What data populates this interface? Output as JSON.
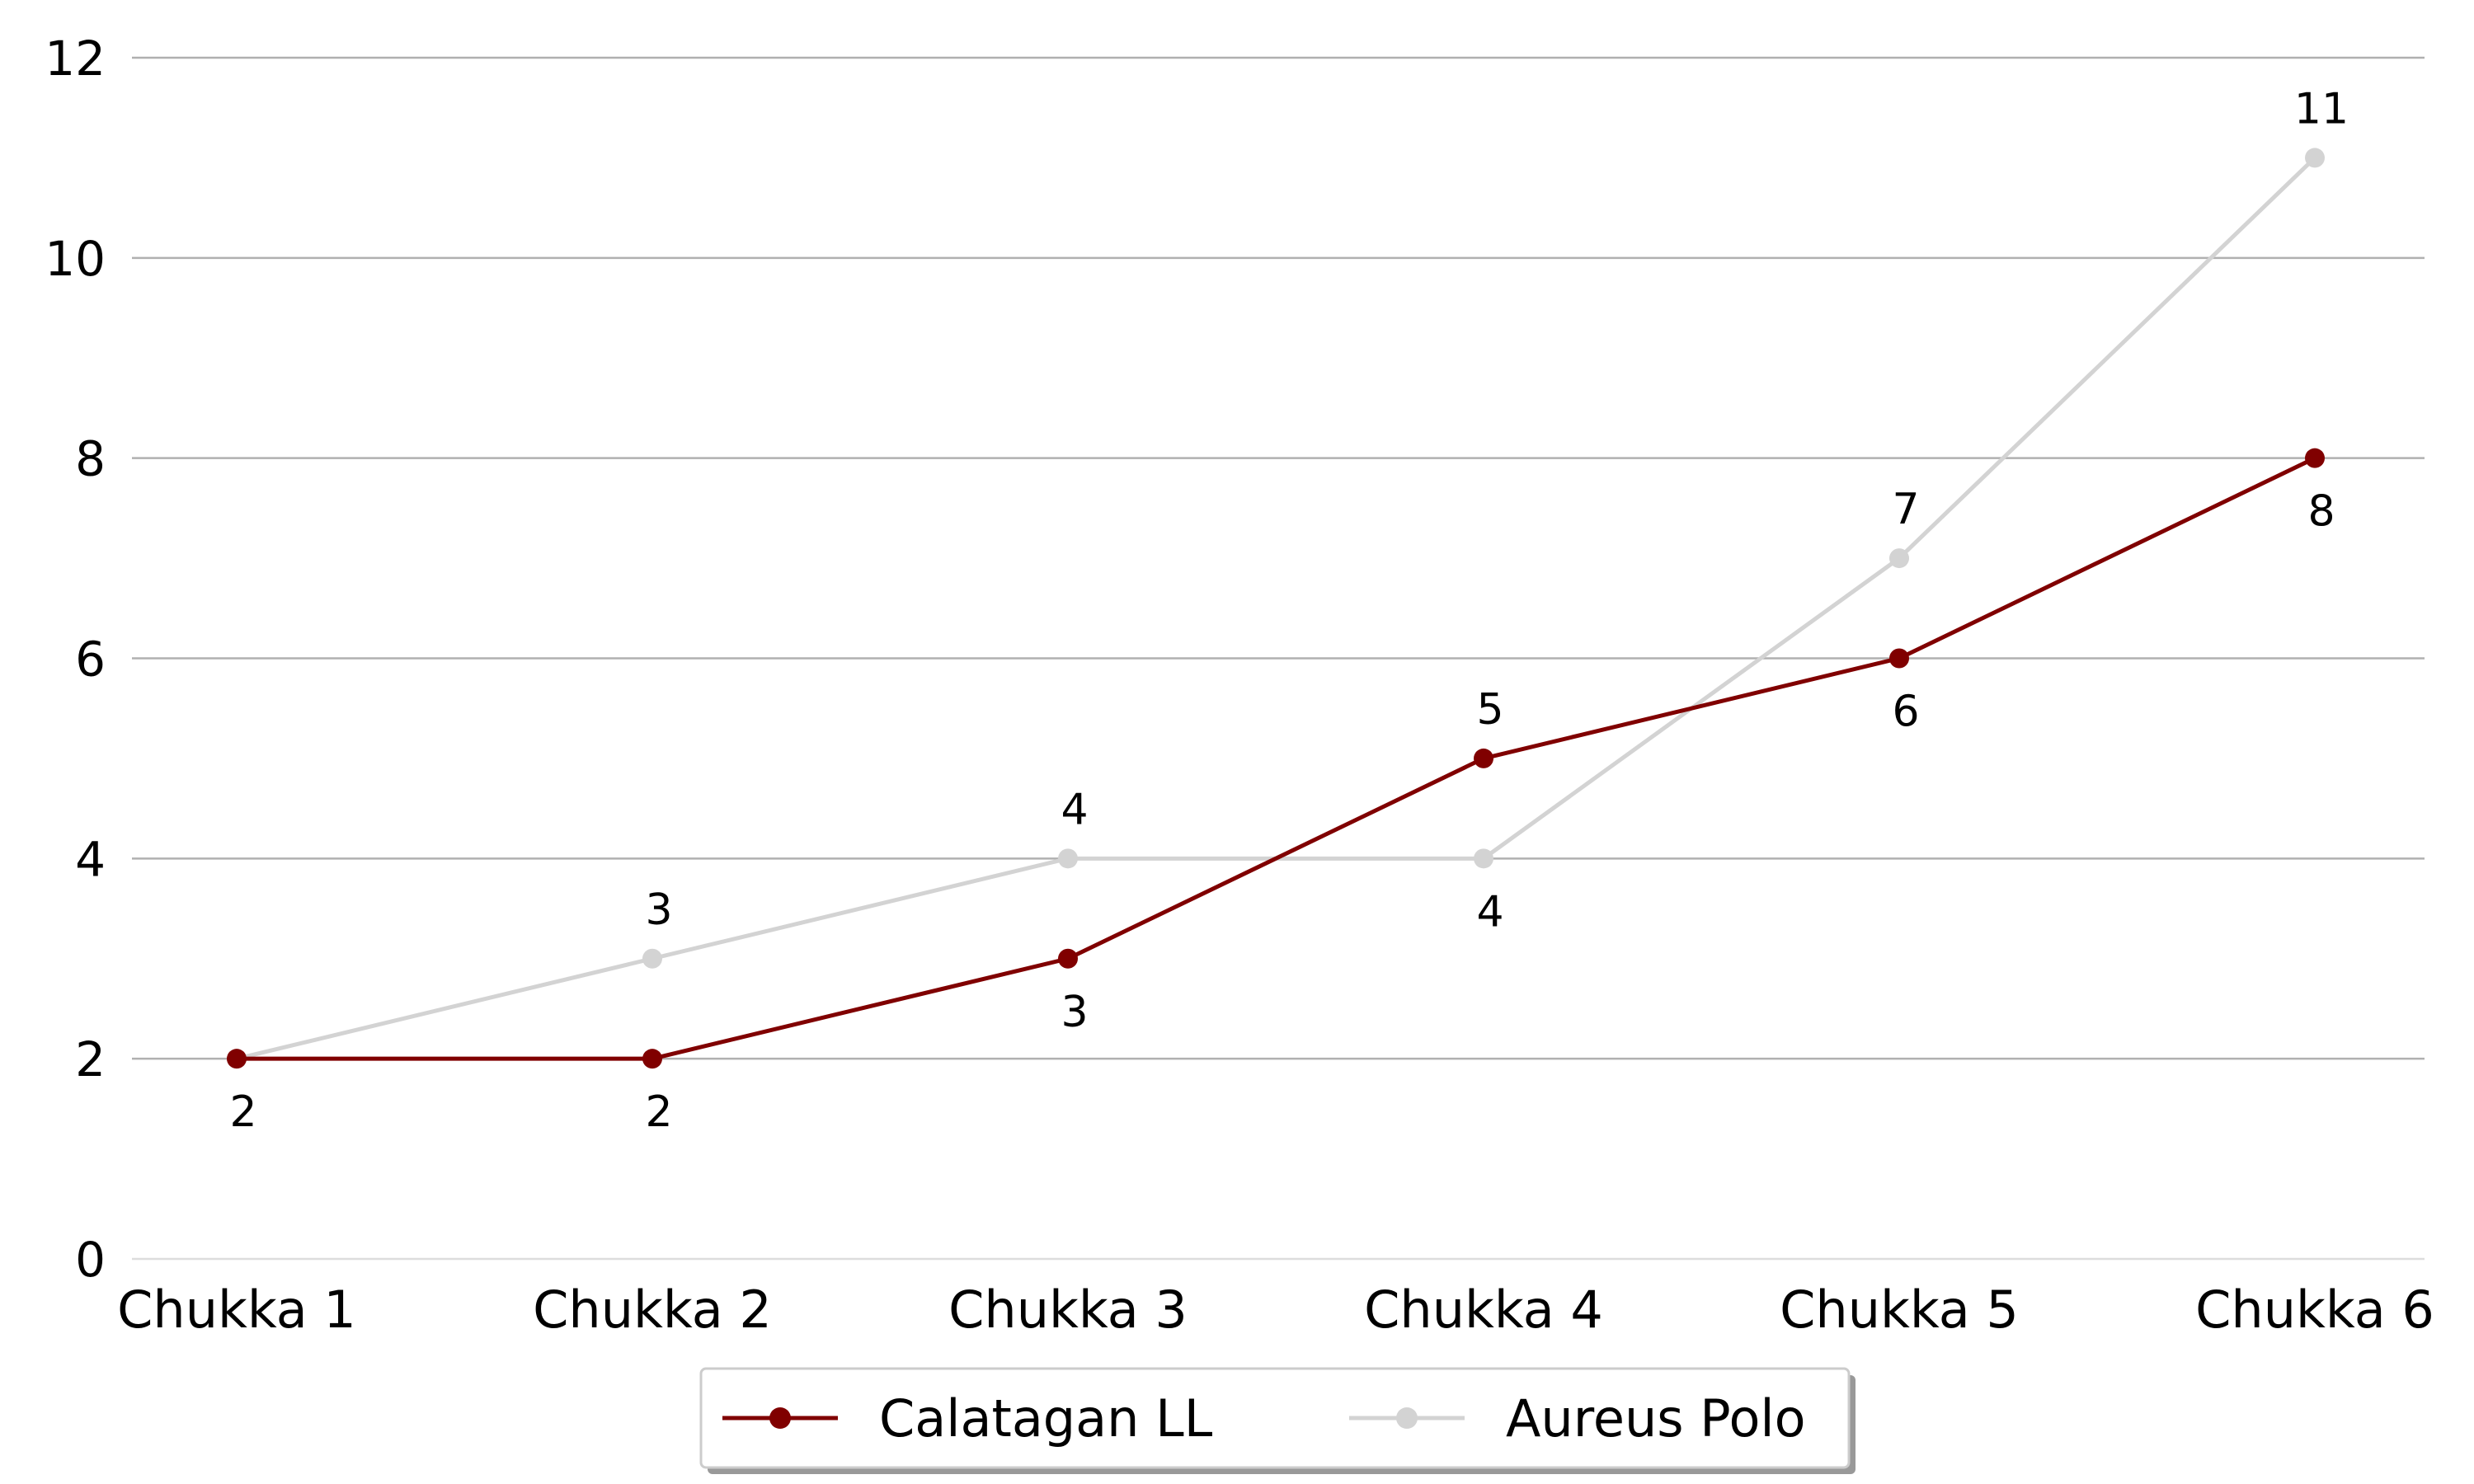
{
  "chart_data": {
    "type": "line",
    "title": "",
    "xlabel": "",
    "ylabel": "",
    "categories": [
      "Chukka 1",
      "Chukka 2",
      "Chukka 3",
      "Chukka 4",
      "Chukka 5",
      "Chukka 6"
    ],
    "series": [
      {
        "name": "Calatagan LL",
        "values": [
          2,
          2,
          3,
          5,
          6,
          8
        ],
        "color": "#800000",
        "label_positions": [
          "below",
          "below",
          "below",
          "above",
          "below",
          "below"
        ]
      },
      {
        "name": "Aureus Polo",
        "values": [
          2,
          3,
          4,
          4,
          7,
          11
        ],
        "color": "#d3d3d3",
        "label_positions": [
          "none",
          "above",
          "above",
          "below",
          "above",
          "above"
        ]
      }
    ],
    "ylim": [
      0,
      12
    ],
    "yticks": [
      "0",
      "2",
      "4",
      "6",
      "8",
      "10",
      "12"
    ],
    "grid": "horizontal",
    "legend": "bottom-center"
  }
}
